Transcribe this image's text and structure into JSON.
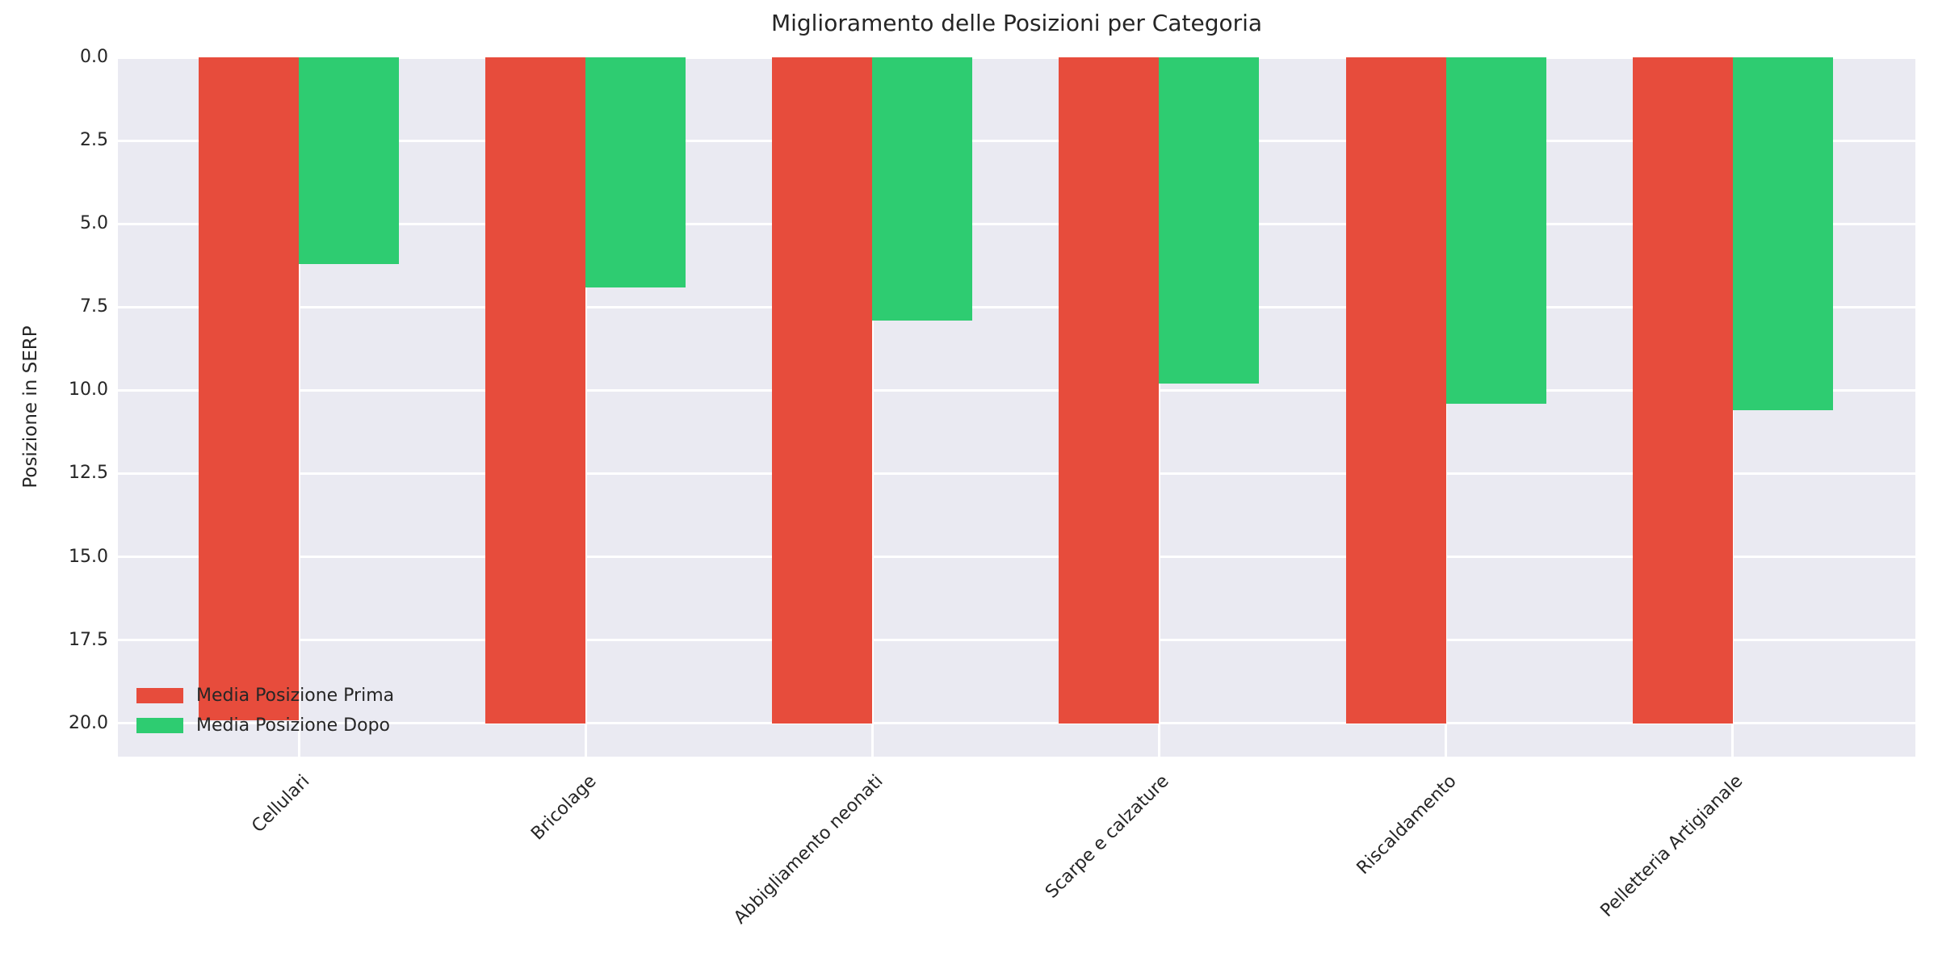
{
  "title": "Miglioramento delle Posizioni per Categoria",
  "chart_data": {
    "type": "bar",
    "title": "Miglioramento delle Posizioni per Categoria",
    "xlabel": "",
    "ylabel": "Posizione in SERP",
    "categories": [
      "Cellulari",
      "Bricolage",
      "Abbigliamento neonati",
      "Scarpe e calzature",
      "Riscaldamento",
      "Pelletteria Artigianale"
    ],
    "series": [
      {
        "name": "Media Posizione Prima",
        "color": "#e74c3c",
        "values": [
          19.9,
          20.0,
          20.0,
          20.0,
          20.0,
          20.0
        ]
      },
      {
        "name": "Media Posizione Dopo",
        "color": "#2ecc71",
        "values": [
          6.2,
          6.9,
          7.9,
          9.8,
          10.4,
          10.6
        ]
      }
    ],
    "y_ticks": [
      "0.0",
      "2.5",
      "5.0",
      "7.5",
      "10.0",
      "12.5",
      "15.0",
      "17.5",
      "20.0"
    ],
    "y_range": [
      0,
      21
    ],
    "y_inverted": true,
    "grid": true,
    "legend_position": "lower left",
    "plot_background": "#eaeaf2",
    "gridline_color": "#ffffff"
  }
}
